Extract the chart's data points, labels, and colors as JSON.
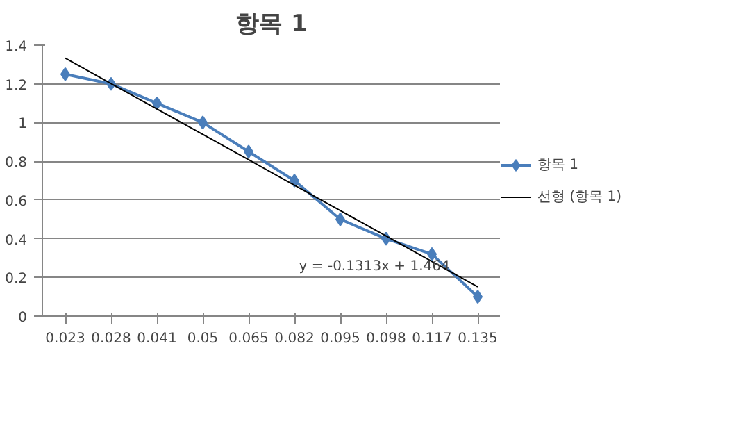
{
  "chart_data": {
    "type": "line",
    "title": "항목 1",
    "categories": [
      "0.023",
      "0.028",
      "0.041",
      "0.05",
      "0.065",
      "0.082",
      "0.095",
      "0.098",
      "0.117",
      "0.135"
    ],
    "series": [
      {
        "name": "항목 1",
        "color": "#4a7ebb",
        "marker": "diamond",
        "values": [
          1.25,
          1.2,
          1.1,
          1.0,
          0.85,
          0.7,
          0.5,
          0.4,
          0.32,
          0.1
        ]
      },
      {
        "name": "선형 (항목 1)",
        "color": "#000000",
        "marker": "none",
        "values": [
          1.333,
          1.201,
          1.07,
          0.939,
          0.808,
          0.676,
          0.545,
          0.414,
          0.282,
          0.151
        ]
      }
    ],
    "ylim": [
      0,
      1.4
    ],
    "yticks": [
      0,
      0.2,
      0.4,
      0.6,
      0.8,
      1,
      1.2,
      1.4
    ],
    "grid": "y",
    "legend": "right",
    "annotations": [
      "y = -0.1313x + 1.464"
    ]
  }
}
